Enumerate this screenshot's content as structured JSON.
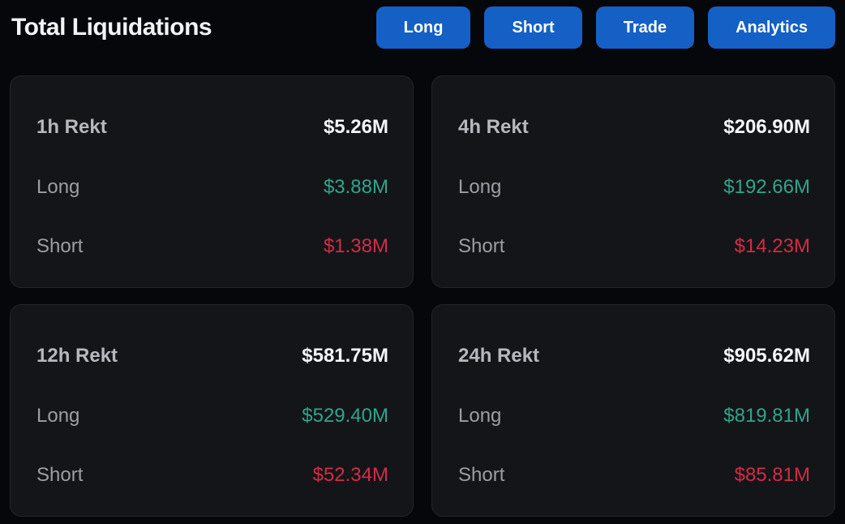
{
  "header": {
    "title": "Total Liquidations",
    "buttons": [
      {
        "label": "Long"
      },
      {
        "label": "Short"
      },
      {
        "label": "Trade"
      },
      {
        "label": "Analytics"
      }
    ]
  },
  "cards": [
    {
      "period": "1h Rekt",
      "total": "$5.26M",
      "long_label": "Long",
      "long_value": "$3.88M",
      "short_label": "Short",
      "short_value": "$1.38M"
    },
    {
      "period": "4h Rekt",
      "total": "$206.90M",
      "long_label": "Long",
      "long_value": "$192.66M",
      "short_label": "Short",
      "short_value": "$14.23M"
    },
    {
      "period": "12h Rekt",
      "total": "$581.75M",
      "long_label": "Long",
      "long_value": "$529.40M",
      "short_label": "Short",
      "short_value": "$52.34M"
    },
    {
      "period": "24h Rekt",
      "total": "$905.62M",
      "long_label": "Long",
      "long_value": "$819.81M",
      "short_label": "Short",
      "short_value": "$85.81M"
    }
  ],
  "colors": {
    "page_bg": "#06070a",
    "card_bg": "#141519",
    "accent_blue": "#1560c4",
    "long_green": "#2fa58b",
    "short_red": "#d42b45"
  }
}
